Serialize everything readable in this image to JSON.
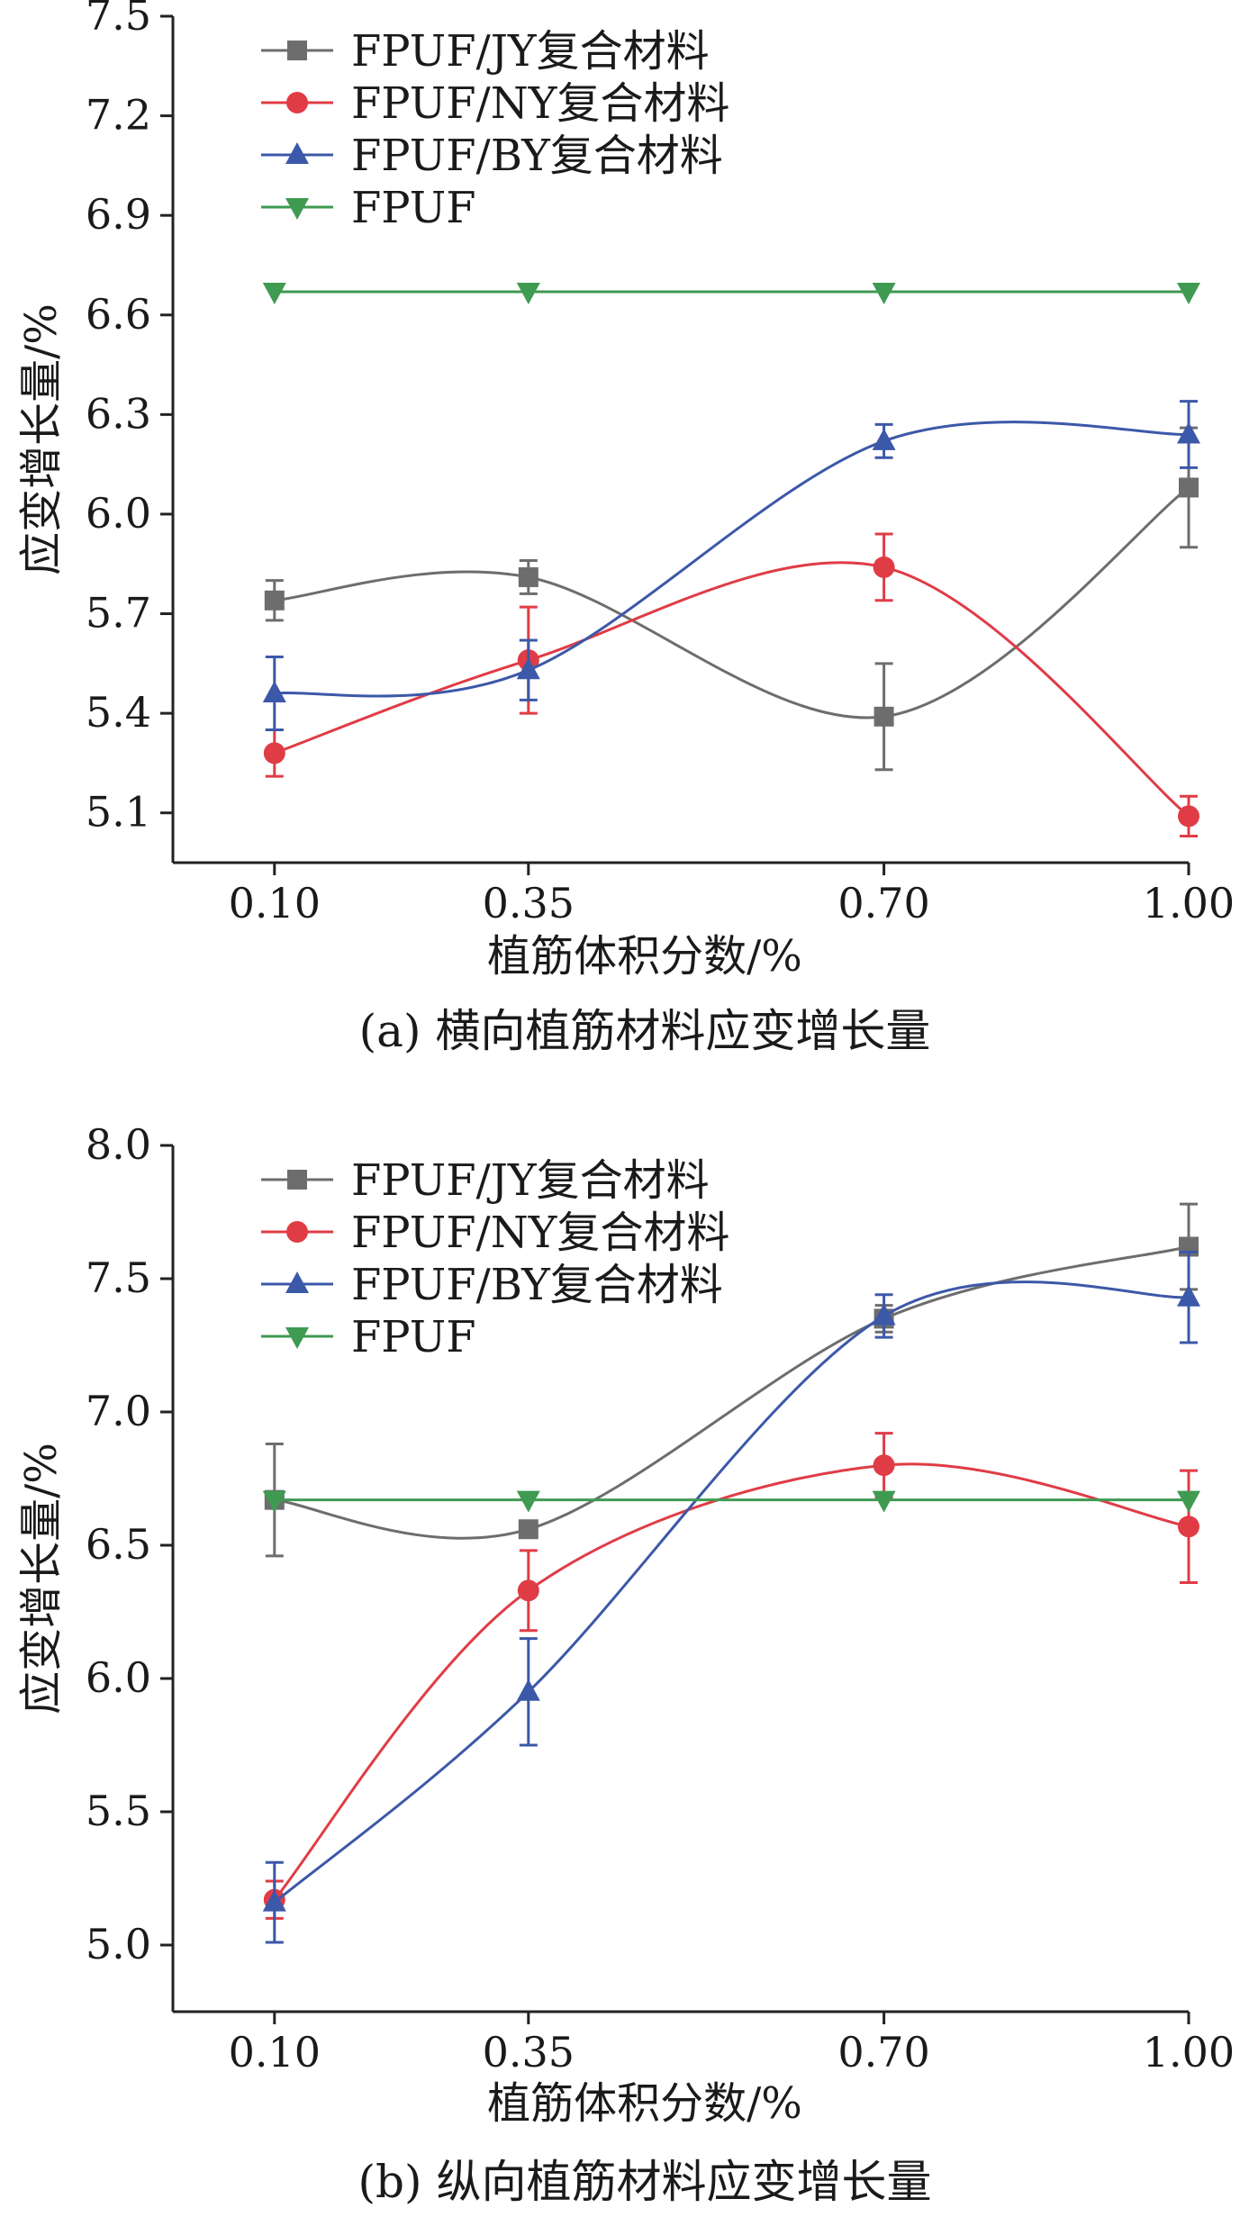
{
  "chart_data": [
    {
      "type": "line",
      "panel": "(a)",
      "caption": "(a) 横向植筋材料应变增长量",
      "xlabel": "植筋体积分数/%",
      "ylabel": "应变增长量/%",
      "categories": [
        "0.10",
        "0.35",
        "0.70",
        "1.00"
      ],
      "x": [
        0.1,
        0.35,
        0.7,
        1.0
      ],
      "xlim": [
        0.0,
        1.0
      ],
      "ylim": [
        4.95,
        7.5
      ],
      "yticks": [
        5.1,
        5.4,
        5.7,
        6.0,
        6.3,
        6.6,
        6.9,
        7.2,
        7.5
      ],
      "ytick_labels": [
        "5.1",
        "5.4",
        "5.7",
        "6.0",
        "6.3",
        "6.6",
        "6.9",
        "7.2",
        "7.5"
      ],
      "legend_position": "top-left",
      "series": [
        {
          "name": "FPUF/JY复合材料",
          "marker": "square",
          "color": "#6d6d6d",
          "values": [
            5.74,
            5.81,
            5.39,
            6.08
          ],
          "errors": [
            0.06,
            0.05,
            0.16,
            0.18
          ]
        },
        {
          "name": "FPUF/NY复合材料",
          "marker": "circle",
          "color": "#e03c46",
          "values": [
            5.28,
            5.56,
            5.84,
            5.09
          ],
          "errors": [
            0.07,
            0.16,
            0.1,
            0.06
          ]
        },
        {
          "name": "FPUF/BY复合材料",
          "marker": "triangle-up",
          "color": "#3c58a8",
          "values": [
            5.46,
            5.53,
            6.22,
            6.24
          ],
          "errors": [
            0.11,
            0.09,
            0.05,
            0.1
          ]
        },
        {
          "name": "FPUF",
          "marker": "triangle-down",
          "color": "#3f9a52",
          "values": [
            6.67,
            6.67,
            6.67,
            6.67
          ],
          "errors": [
            0,
            0,
            0,
            0
          ]
        }
      ]
    },
    {
      "type": "line",
      "panel": "(b)",
      "caption": "(b) 纵向植筋材料应变增长量",
      "xlabel": "植筋体积分数/%",
      "ylabel": "应变增长量/%",
      "categories": [
        "0.10",
        "0.35",
        "0.70",
        "1.00"
      ],
      "x": [
        0.1,
        0.35,
        0.7,
        1.0
      ],
      "xlim": [
        0.0,
        1.0
      ],
      "ylim": [
        4.75,
        8.0
      ],
      "yticks": [
        5.0,
        5.5,
        6.0,
        6.5,
        7.0,
        7.5,
        8.0
      ],
      "ytick_labels": [
        "5.0",
        "5.5",
        "6.0",
        "6.5",
        "7.0",
        "7.5",
        "8.0"
      ],
      "legend_position": "top-left",
      "series": [
        {
          "name": "FPUF/JY复合材料",
          "marker": "square",
          "color": "#6d6d6d",
          "values": [
            6.67,
            6.56,
            7.35,
            7.62
          ],
          "errors": [
            0.21,
            0.03,
            0.05,
            0.16
          ]
        },
        {
          "name": "FPUF/NY复合材料",
          "marker": "circle",
          "color": "#e03c46",
          "values": [
            5.17,
            6.33,
            6.8,
            6.57
          ],
          "errors": [
            0.07,
            0.15,
            0.12,
            0.21
          ]
        },
        {
          "name": "FPUF/BY复合材料",
          "marker": "triangle-up",
          "color": "#3c58a8",
          "values": [
            5.16,
            5.95,
            7.36,
            7.43
          ],
          "errors": [
            0.15,
            0.2,
            0.08,
            0.17
          ]
        },
        {
          "name": "FPUF",
          "marker": "triangle-down",
          "color": "#3f9a52",
          "values": [
            6.67,
            6.67,
            6.67,
            6.67
          ],
          "errors": [
            0,
            0,
            0,
            0
          ]
        }
      ]
    }
  ]
}
